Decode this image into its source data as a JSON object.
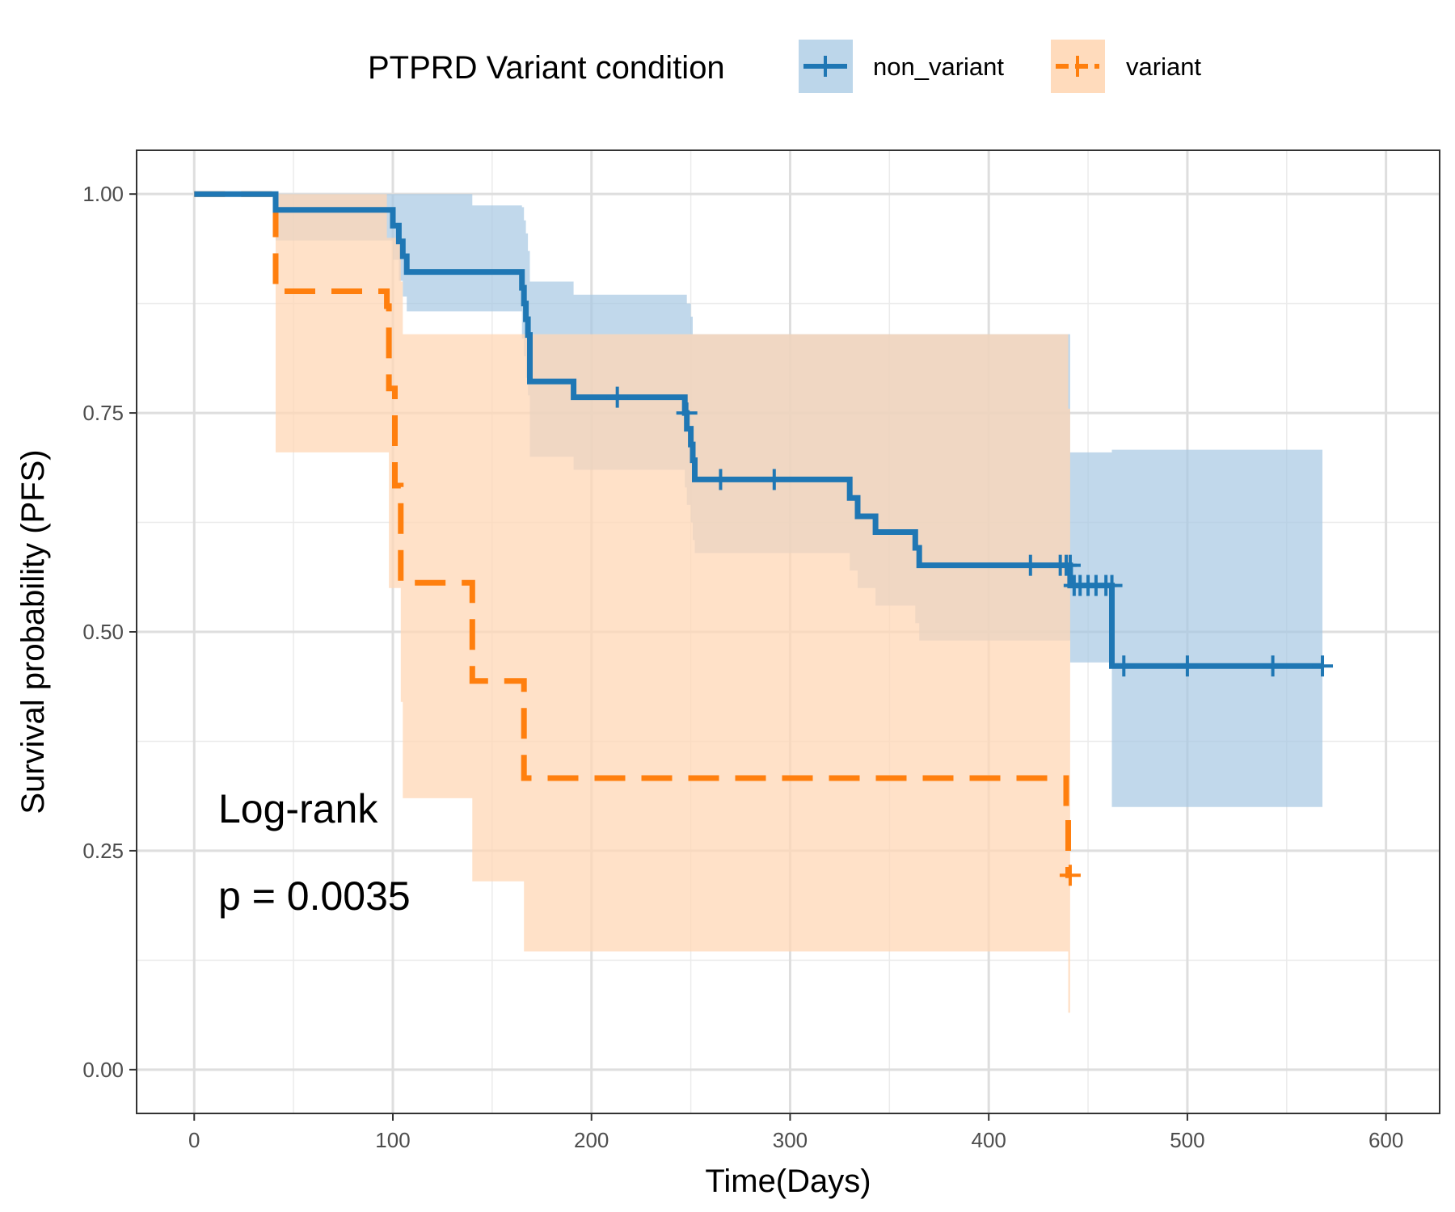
{
  "chart_data": {
    "type": "line",
    "subtype": "kaplan-meier",
    "title": "",
    "xlabel": "Time(Days)",
    "ylabel": "Survival probability (PFS)",
    "xlim": [
      -29,
      627
    ],
    "ylim": [
      -0.05,
      1.05
    ],
    "xticks": [
      0,
      100,
      200,
      300,
      400,
      500,
      600
    ],
    "yticks": [
      0.0,
      0.25,
      0.5,
      0.75,
      1.0
    ],
    "xtick_labels": [
      "0",
      "100",
      "200",
      "300",
      "400",
      "500",
      "600"
    ],
    "ytick_labels": [
      "0.00",
      "0.25",
      "0.50",
      "0.75",
      "1.00"
    ],
    "grid": true,
    "legend": {
      "title": "PTPRD Variant condition",
      "position": "top",
      "entries": [
        "non_variant",
        "variant"
      ]
    },
    "annotation": {
      "line1": "Log-rank",
      "line2": "p = 0.0035"
    },
    "series": [
      {
        "name": "non_variant",
        "color": "#1f77b4",
        "fill": "#a6c8e3",
        "dash": "solid",
        "steps": [
          [
            0,
            1.0
          ],
          [
            41,
            0.982
          ],
          [
            100,
            0.964
          ],
          [
            103,
            0.946
          ],
          [
            105,
            0.929
          ],
          [
            107,
            0.911
          ],
          [
            165,
            0.893
          ],
          [
            166,
            0.875
          ],
          [
            167,
            0.857
          ],
          [
            168,
            0.839
          ],
          [
            169,
            0.786
          ],
          [
            191,
            0.768
          ],
          [
            247,
            0.75
          ],
          [
            248,
            0.732
          ],
          [
            250,
            0.714
          ],
          [
            251,
            0.696
          ],
          [
            252,
            0.674
          ],
          [
            330,
            0.653
          ],
          [
            334,
            0.632
          ],
          [
            343,
            0.614
          ],
          [
            363,
            0.596
          ],
          [
            365,
            0.576
          ],
          [
            441,
            0.553
          ],
          [
            462,
            0.461
          ],
          [
            568,
            0.461
          ]
        ],
        "lower": [
          [
            0,
            1.0
          ],
          [
            41,
            0.947
          ],
          [
            100,
            0.925
          ],
          [
            103,
            0.901
          ],
          [
            105,
            0.883
          ],
          [
            107,
            0.866
          ],
          [
            165,
            0.835
          ],
          [
            166,
            0.815
          ],
          [
            167,
            0.79
          ],
          [
            168,
            0.77
          ],
          [
            169,
            0.7
          ],
          [
            191,
            0.685
          ],
          [
            247,
            0.665
          ],
          [
            248,
            0.645
          ],
          [
            250,
            0.625
          ],
          [
            251,
            0.605
          ],
          [
            252,
            0.59
          ],
          [
            330,
            0.57
          ],
          [
            334,
            0.55
          ],
          [
            343,
            0.53
          ],
          [
            363,
            0.51
          ],
          [
            365,
            0.49
          ],
          [
            441,
            0.465
          ],
          [
            462,
            0.3
          ],
          [
            568,
            0.3
          ]
        ],
        "upper": [
          [
            0,
            1.0
          ],
          [
            41,
            1.0
          ],
          [
            100,
            1.0
          ],
          [
            103,
            1.0
          ],
          [
            105,
            1.0
          ],
          [
            107,
            1.0
          ],
          [
            140,
            0.987
          ],
          [
            165,
            0.985
          ],
          [
            166,
            0.97
          ],
          [
            167,
            0.955
          ],
          [
            168,
            0.935
          ],
          [
            169,
            0.9
          ],
          [
            191,
            0.885
          ],
          [
            247,
            0.885
          ],
          [
            248,
            0.875
          ],
          [
            250,
            0.86
          ],
          [
            251,
            0.84
          ],
          [
            252,
            0.84
          ],
          [
            330,
            0.84
          ],
          [
            334,
            0.84
          ],
          [
            343,
            0.84
          ],
          [
            363,
            0.84
          ],
          [
            365,
            0.84
          ],
          [
            441,
            0.705
          ],
          [
            462,
            0.708
          ],
          [
            568,
            0.708
          ]
        ],
        "censors": [
          [
            213,
            0.768
          ],
          [
            248,
            0.75
          ],
          [
            265,
            0.674
          ],
          [
            292,
            0.674
          ],
          [
            421,
            0.576
          ],
          [
            436,
            0.576
          ],
          [
            439,
            0.576
          ],
          [
            441,
            0.576
          ],
          [
            443,
            0.553
          ],
          [
            446,
            0.553
          ],
          [
            450,
            0.553
          ],
          [
            454,
            0.553
          ],
          [
            459,
            0.553
          ],
          [
            462,
            0.553
          ],
          [
            468,
            0.461
          ],
          [
            500,
            0.461
          ],
          [
            543,
            0.461
          ],
          [
            568,
            0.461
          ]
        ]
      },
      {
        "name": "variant",
        "color": "#ff7f0e",
        "fill": "#ffd7b5",
        "dash": "dashed",
        "steps": [
          [
            0,
            1.0
          ],
          [
            41,
            0.889
          ],
          [
            97,
            0.872
          ],
          [
            98,
            0.778
          ],
          [
            101,
            0.667
          ],
          [
            104,
            0.556
          ],
          [
            140,
            0.444
          ],
          [
            166,
            0.333
          ],
          [
            439,
            0.3
          ],
          [
            440,
            0.222
          ],
          [
            441,
            0.222
          ]
        ],
        "lower": [
          [
            0,
            1.0
          ],
          [
            41,
            0.705
          ],
          [
            97,
            0.705
          ],
          [
            98,
            0.55
          ],
          [
            104,
            0.42
          ],
          [
            105,
            0.31
          ],
          [
            140,
            0.215
          ],
          [
            166,
            0.135
          ],
          [
            439,
            0.135
          ],
          [
            440,
            0.065
          ]
        ],
        "upper": [
          [
            0,
            1.0
          ],
          [
            41,
            1.0
          ],
          [
            97,
            0.95
          ],
          [
            98,
            0.95
          ],
          [
            104,
            0.9
          ],
          [
            105,
            0.84
          ],
          [
            140,
            0.84
          ],
          [
            166,
            0.84
          ],
          [
            439,
            0.84
          ],
          [
            440,
            0.755
          ]
        ],
        "censors": [
          [
            441,
            0.222
          ]
        ]
      }
    ]
  }
}
